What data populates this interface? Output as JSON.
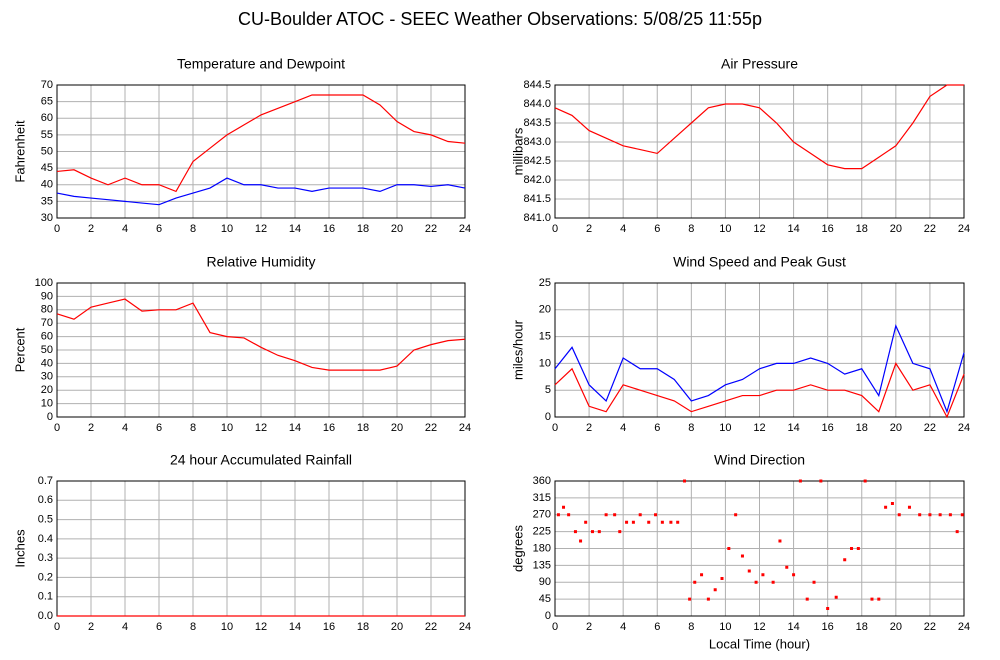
{
  "title": "CU-Boulder ATOC - SEEC Weather Observations: 5/08/25 11:55p",
  "chart_data": [
    {
      "type": "line",
      "title": "Temperature and Dewpoint",
      "ylabel": "Fahrenheit",
      "xlim": [
        0,
        24
      ],
      "xticks": [
        0,
        2,
        4,
        6,
        8,
        10,
        12,
        14,
        16,
        18,
        20,
        22,
        24
      ],
      "ylim": [
        30,
        70
      ],
      "yticks": [
        30,
        35,
        40,
        45,
        50,
        55,
        60,
        65,
        70
      ],
      "grid": true,
      "x": [
        0,
        1,
        2,
        3,
        4,
        5,
        6,
        7,
        8,
        9,
        10,
        11,
        12,
        13,
        14,
        15,
        16,
        17,
        18,
        19,
        20,
        21,
        22,
        23,
        24
      ],
      "series": [
        {
          "color": "#ff0000",
          "values": [
            44,
            44.5,
            42,
            40,
            42,
            40,
            40,
            38,
            47,
            51,
            55,
            58,
            61,
            63,
            65,
            67,
            67,
            67,
            67,
            64,
            59,
            56,
            55,
            53,
            52.5
          ]
        },
        {
          "color": "#0000ff",
          "values": [
            37.5,
            36.5,
            36,
            35.5,
            35,
            34.5,
            34,
            36,
            37.5,
            39,
            42,
            40,
            40,
            39,
            39,
            38,
            39,
            39,
            39,
            38,
            40,
            40,
            39.5,
            40,
            39
          ]
        }
      ]
    },
    {
      "type": "line",
      "title": "Air Pressure",
      "ylabel": "millibars",
      "xlim": [
        0,
        24
      ],
      "xticks": [
        0,
        2,
        4,
        6,
        8,
        10,
        12,
        14,
        16,
        18,
        20,
        22,
        24
      ],
      "ylim": [
        841,
        844.5
      ],
      "yticks": [
        {
          "value": 841,
          "label": "841.0"
        },
        841.5,
        {
          "value": 842,
          "label": "842.0"
        },
        842.5,
        {
          "value": 843,
          "label": "843.0"
        },
        843.5,
        {
          "value": 844,
          "label": "844.0"
        },
        844.5
      ],
      "grid": true,
      "x": [
        0,
        1,
        2,
        3,
        4,
        5,
        6,
        7,
        8,
        9,
        10,
        11,
        12,
        13,
        14,
        15,
        16,
        17,
        18,
        19,
        20,
        21,
        22,
        23,
        24
      ],
      "series": [
        {
          "color": "#ff0000",
          "values": [
            843.9,
            843.7,
            843.3,
            843.1,
            842.9,
            842.8,
            842.7,
            843.1,
            843.5,
            843.9,
            844,
            844,
            843.9,
            843.5,
            843,
            842.7,
            842.4,
            842.3,
            842.3,
            842.6,
            842.9,
            843.5,
            844.2,
            844.5,
            844.5
          ]
        }
      ]
    },
    {
      "type": "line",
      "title": "Relative Humidity",
      "ylabel": "Percent",
      "xlim": [
        0,
        24
      ],
      "xticks": [
        0,
        2,
        4,
        6,
        8,
        10,
        12,
        14,
        16,
        18,
        20,
        22,
        24
      ],
      "ylim": [
        0,
        100
      ],
      "yticks": [
        0,
        10,
        20,
        30,
        40,
        50,
        60,
        70,
        80,
        90,
        100
      ],
      "grid": true,
      "x": [
        0,
        1,
        2,
        3,
        4,
        5,
        6,
        7,
        8,
        9,
        10,
        11,
        12,
        13,
        14,
        15,
        16,
        17,
        18,
        19,
        20,
        21,
        22,
        23,
        24
      ],
      "series": [
        {
          "color": "#ff0000",
          "values": [
            77,
            73,
            82,
            85,
            88,
            79,
            80,
            80,
            85,
            63,
            60,
            59,
            52,
            46,
            42,
            37,
            35,
            35,
            35,
            35,
            38,
            50,
            54,
            57,
            58
          ]
        }
      ]
    },
    {
      "type": "line",
      "title": "Wind Speed and Peak Gust",
      "ylabel": "miles/hour",
      "xlim": [
        0,
        24
      ],
      "xticks": [
        0,
        2,
        4,
        6,
        8,
        10,
        12,
        14,
        16,
        18,
        20,
        22,
        24
      ],
      "ylim": [
        0,
        25
      ],
      "yticks": [
        0,
        5,
        10,
        15,
        20,
        25
      ],
      "grid": true,
      "x": [
        0,
        1,
        2,
        3,
        4,
        5,
        6,
        7,
        8,
        9,
        10,
        11,
        12,
        13,
        14,
        15,
        16,
        17,
        18,
        19,
        20,
        21,
        22,
        23,
        24
      ],
      "series": [
        {
          "color": "#0000ff",
          "values": [
            9,
            13,
            6,
            3,
            11,
            9,
            9,
            7,
            3,
            4,
            6,
            7,
            9,
            10,
            10,
            11,
            10,
            8,
            9,
            4,
            17,
            10,
            9,
            1,
            12
          ]
        },
        {
          "color": "#ff0000",
          "values": [
            6,
            9,
            2,
            1,
            6,
            5,
            4,
            3,
            1,
            2,
            3,
            4,
            4,
            5,
            5,
            6,
            5,
            5,
            4,
            1,
            10,
            5,
            6,
            0,
            8
          ]
        }
      ]
    },
    {
      "type": "line",
      "title": "24 hour Accumulated Rainfall",
      "ylabel": "Inches",
      "xlim": [
        0,
        24
      ],
      "xticks": [
        0,
        2,
        4,
        6,
        8,
        10,
        12,
        14,
        16,
        18,
        20,
        22,
        24
      ],
      "ylim": [
        0,
        0.7
      ],
      "yticks": [
        {
          "value": 0,
          "label": "0.0"
        },
        0.1,
        0.2,
        0.3,
        0.4,
        0.5,
        0.6,
        0.7
      ],
      "grid": true,
      "x": [
        0,
        1,
        2,
        3,
        4,
        5,
        6,
        7,
        8,
        9,
        10,
        11,
        12,
        13,
        14,
        15,
        16,
        17,
        18,
        19,
        20,
        21,
        22,
        23,
        24
      ],
      "series": [
        {
          "color": "#ff0000",
          "values": [
            0,
            0,
            0,
            0,
            0,
            0,
            0,
            0,
            0,
            0,
            0,
            0,
            0,
            0,
            0,
            0,
            0,
            0,
            0,
            0,
            0,
            0,
            0,
            0,
            0
          ]
        }
      ]
    },
    {
      "type": "scatter",
      "title": "Wind Direction",
      "ylabel": "degrees",
      "xlabel": "Local Time (hour)",
      "xlim": [
        0,
        24
      ],
      "xticks": [
        0,
        2,
        4,
        6,
        8,
        10,
        12,
        14,
        16,
        18,
        20,
        22,
        24
      ],
      "ylim": [
        0,
        360
      ],
      "yticks": [
        0,
        45,
        90,
        135,
        180,
        225,
        270,
        315,
        360
      ],
      "grid": true,
      "color": "#ff0000",
      "x": [
        0.2,
        0.5,
        0.8,
        1.2,
        1.5,
        1.8,
        2.2,
        2.6,
        3,
        3.5,
        3.8,
        4.2,
        4.6,
        5,
        5.5,
        5.9,
        6.3,
        6.8,
        7.2,
        7.6,
        7.9,
        8.2,
        8.6,
        9,
        9.4,
        9.8,
        10.2,
        10.6,
        11,
        11.4,
        11.8,
        12.2,
        12.8,
        13.2,
        13.6,
        14,
        14.4,
        14.8,
        15.2,
        15.6,
        16,
        16.5,
        17,
        17.4,
        17.8,
        18.2,
        18.6,
        19,
        19.4,
        19.8,
        20.2,
        20.8,
        21.4,
        22,
        22.6,
        23.2,
        23.6,
        23.9
      ],
      "values": [
        270,
        290,
        270,
        225,
        200,
        250,
        225,
        225,
        270,
        270,
        225,
        250,
        250,
        270,
        250,
        270,
        250,
        250,
        250,
        360,
        45,
        90,
        110,
        45,
        70,
        100,
        180,
        270,
        160,
        120,
        90,
        110,
        90,
        200,
        130,
        110,
        360,
        45,
        90,
        360,
        20,
        50,
        150,
        180,
        180,
        360,
        45,
        45,
        290,
        300,
        270,
        290,
        270,
        270,
        270,
        270,
        225,
        270
      ]
    }
  ]
}
